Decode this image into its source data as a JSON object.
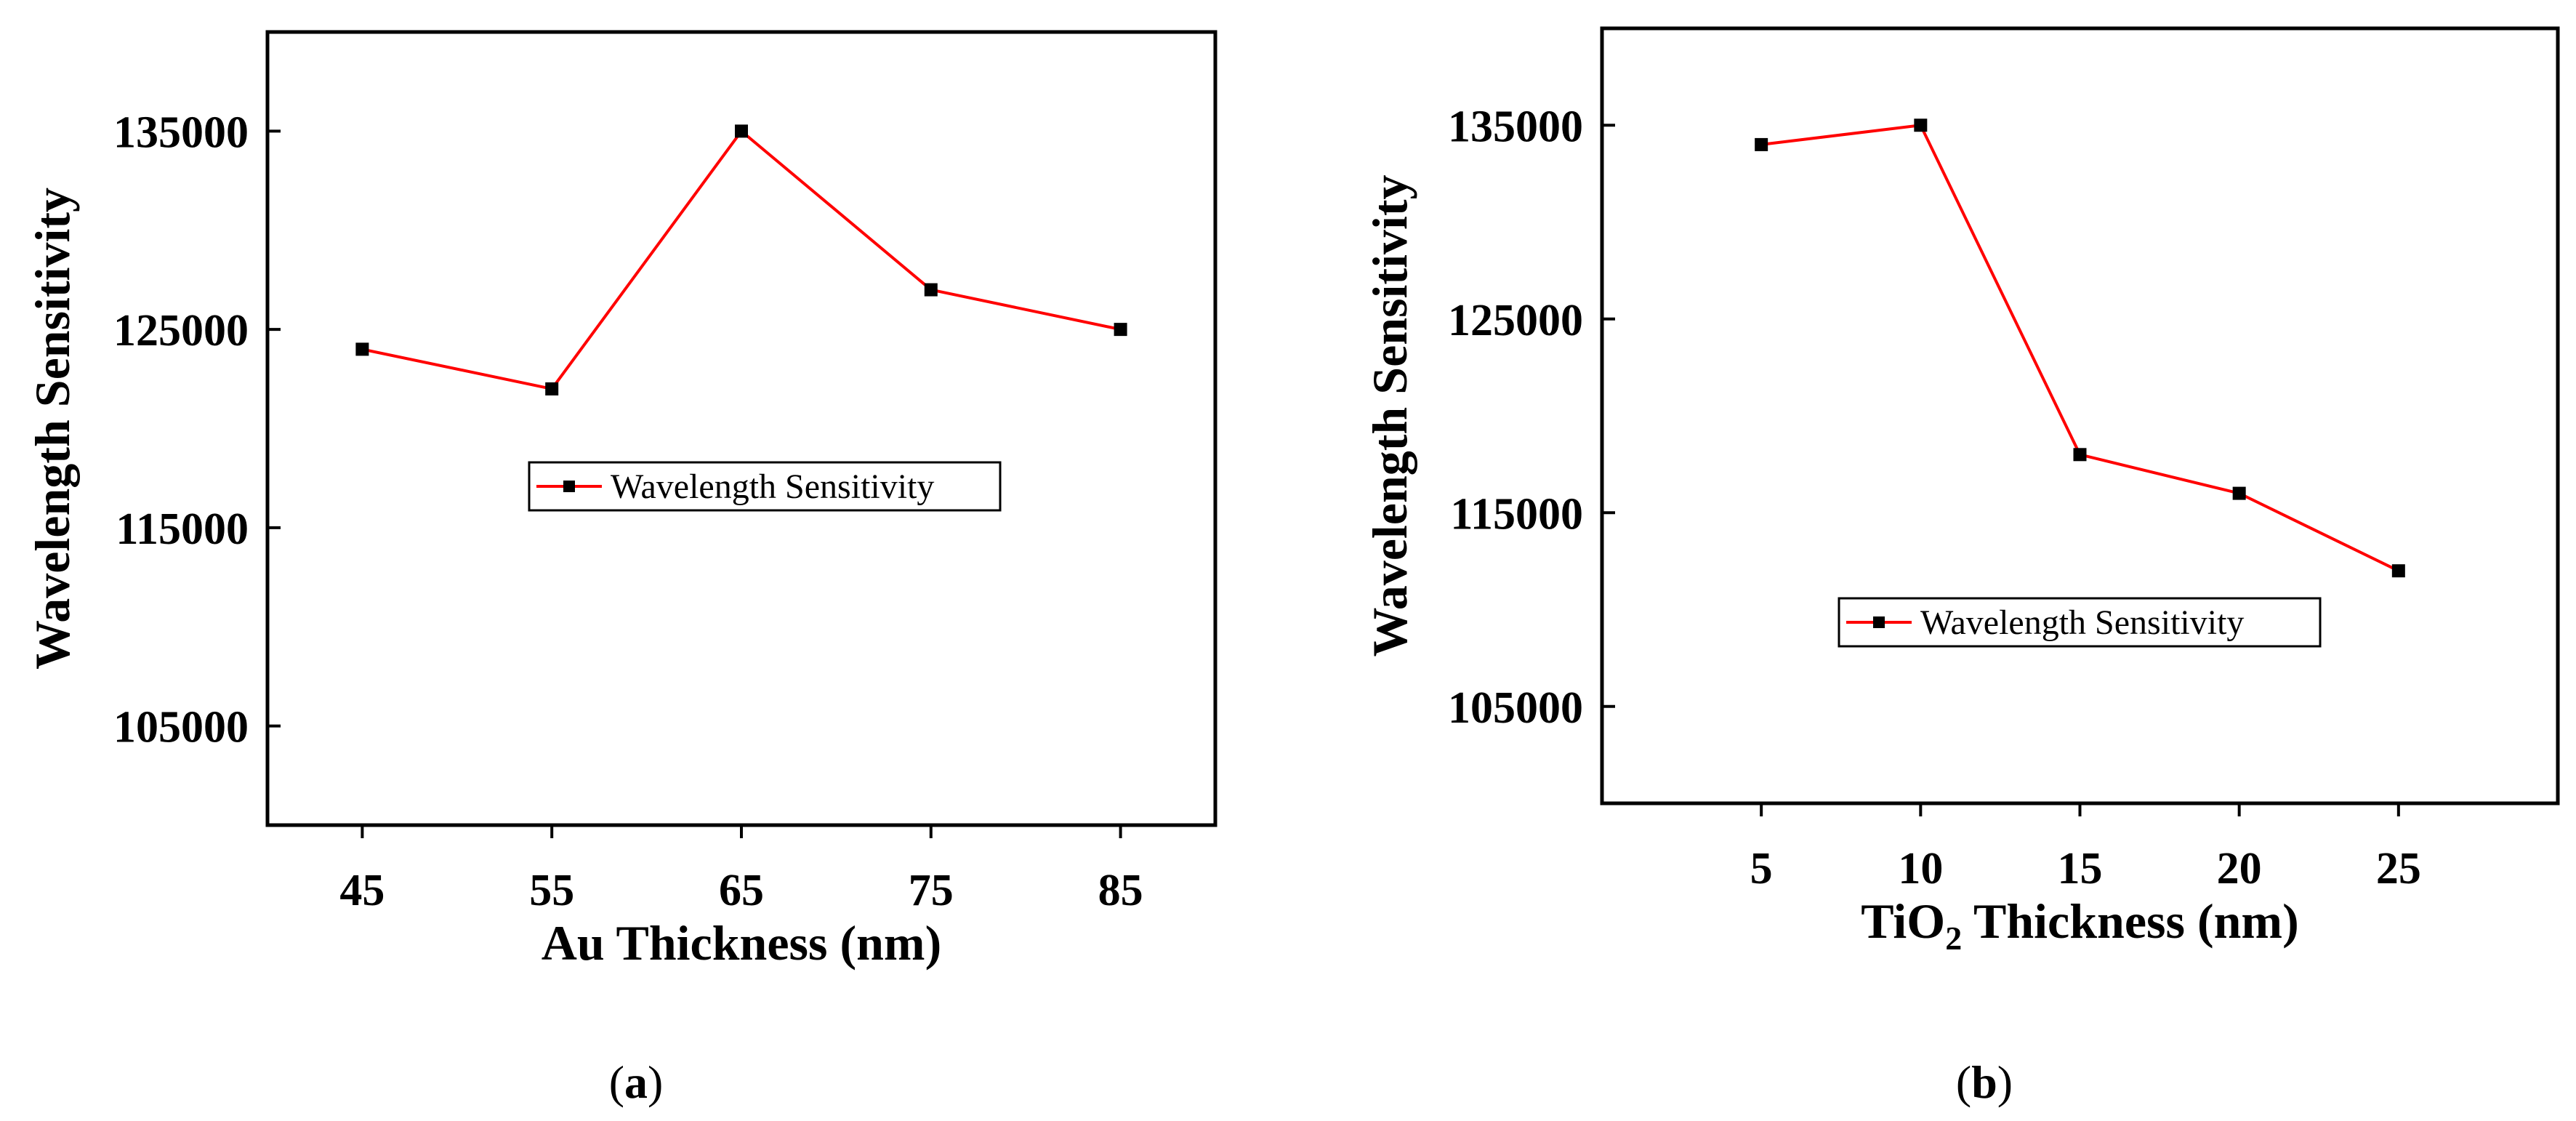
{
  "chart_data": [
    {
      "id": "a",
      "type": "line",
      "panel_label": "a",
      "xlabel": "Au Thickness (nm)",
      "ylabel": "Wavelength Sensitivity",
      "x": [
        45,
        55,
        65,
        75,
        85
      ],
      "xticks": [
        "45",
        "55",
        "65",
        "75",
        "85"
      ],
      "xlim": [
        40,
        90
      ],
      "yticks": [
        "105000",
        "115000",
        "125000",
        "135000"
      ],
      "ylim": [
        100000,
        140000
      ],
      "legend_position": "center",
      "series": [
        {
          "name": "Wavelength Sensitivity",
          "color": "#ff0000",
          "marker": "square",
          "marker_color": "#000000",
          "values": [
            124000,
            122000,
            135000,
            127000,
            125000
          ]
        }
      ]
    },
    {
      "id": "b",
      "type": "line",
      "panel_label": "b",
      "xlabel_main": "TiO",
      "xlabel_sub": "2",
      "xlabel_rest": " Thickness (nm)",
      "ylabel": "Wavelength Sensitivity",
      "x": [
        5,
        10,
        15,
        20,
        25
      ],
      "xticks": [
        "5",
        "10",
        "15",
        "20",
        "25"
      ],
      "xlim": [
        0,
        30
      ],
      "yticks": [
        "105000",
        "115000",
        "125000",
        "135000"
      ],
      "ylim": [
        100000,
        140000
      ],
      "legend_position": "center-right",
      "series": [
        {
          "name": "Wavelength Sensitivity",
          "color": "#ff0000",
          "marker": "square",
          "marker_color": "#000000",
          "values": [
            134000,
            135000,
            118000,
            116000,
            112000
          ]
        }
      ]
    }
  ]
}
